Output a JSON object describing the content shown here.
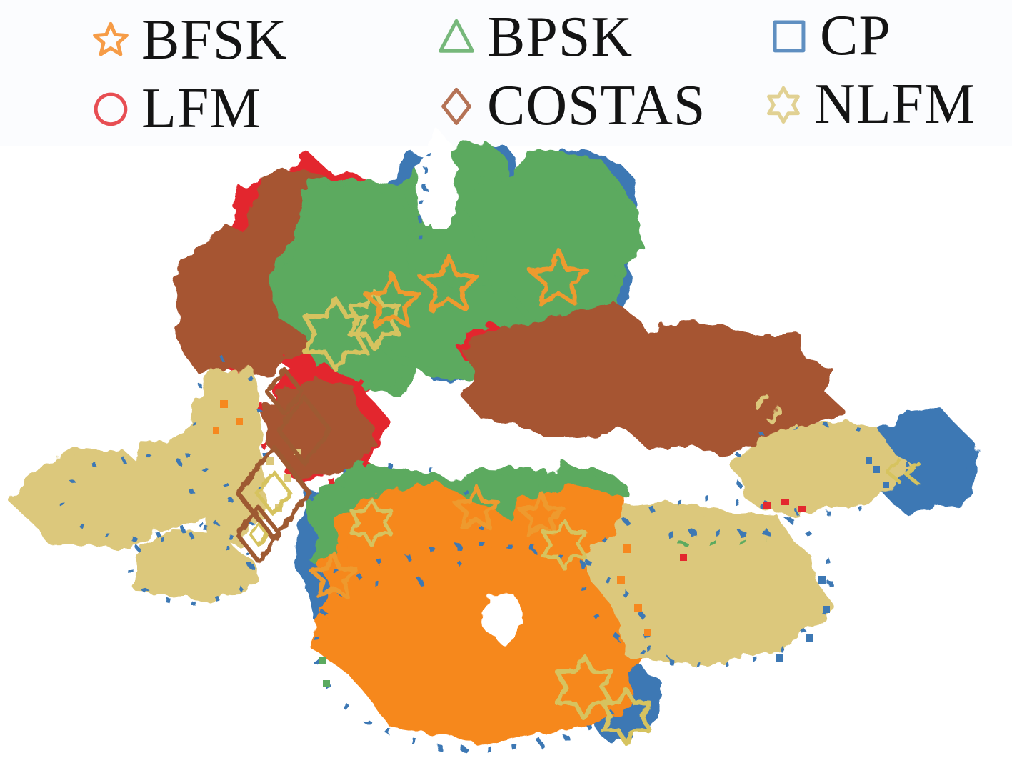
{
  "chart_data": {
    "type": "scatter",
    "title": "",
    "xlabel": "",
    "ylabel": "",
    "axes": "hidden (2-D feature-embedding cluster map)",
    "grid": "off",
    "legend_position": "top, 3 columns x 2 rows",
    "background": "#ffffff",
    "classes": [
      {
        "name": "BFSK",
        "marker": "star5",
        "color": "#F6881F",
        "outline_color": "#EE9A2F"
      },
      {
        "name": "BPSK",
        "marker": "triangle",
        "color": "#5BAA5F",
        "outline_color": "#5BAA5F"
      },
      {
        "name": "CP",
        "marker": "square",
        "color": "#3D78B4",
        "outline_color": "#6C8FAE"
      },
      {
        "name": "LFM",
        "marker": "circle",
        "color": "#E3282E",
        "outline_color": "#CC4A57"
      },
      {
        "name": "COSTAS",
        "marker": "diamond",
        "color": "#A65532",
        "outline_color": "#9E5A33"
      },
      {
        "name": "NLFM",
        "marker": "star6",
        "color": "#DCC87C",
        "outline_color": "#D6C35F"
      }
    ],
    "blobs": [
      [
        2,
        598,
        287,
        52,
        68,
        11
      ],
      [
        2,
        815,
        335,
        78,
        118,
        12
      ],
      [
        2,
        700,
        282,
        26,
        75,
        13
      ],
      [
        2,
        640,
        475,
        95,
        55,
        14
      ],
      [
        2,
        462,
        768,
        48,
        92,
        15
      ],
      [
        3,
        428,
        332,
        112,
        104,
        21
      ],
      [
        3,
        332,
        452,
        62,
        60,
        22
      ],
      [
        3,
        470,
        502,
        72,
        55,
        23
      ],
      [
        4,
        348,
        424,
        100,
        106,
        31
      ],
      [
        4,
        424,
        330,
        86,
        94,
        32
      ],
      [
        1,
        514,
        392,
        122,
        150,
        41
      ],
      [
        1,
        652,
        310,
        84,
        108,
        42
      ],
      [
        -1,
        612,
        258,
        23,
        63,
        45
      ],
      [
        1,
        772,
        345,
        108,
        140,
        43
      ],
      [
        1,
        640,
        462,
        105,
        65,
        44
      ],
      [
        3,
        692,
        486,
        42,
        26,
        52
      ],
      [
        4,
        808,
        522,
        145,
        92,
        51
      ],
      [
        4,
        1012,
        548,
        162,
        88,
        53
      ],
      [
        2,
        1292,
        648,
        68,
        70,
        61
      ],
      [
        5,
        1150,
        655,
        118,
        60,
        62
      ],
      [
        5,
        132,
        702,
        100,
        66,
        71
      ],
      [
        5,
        256,
        674,
        95,
        62,
        72
      ],
      [
        5,
        268,
        792,
        82,
        48,
        73
      ],
      [
        5,
        318,
        635,
        50,
        128,
        74
      ],
      [
        3,
        455,
        592,
        80,
        76,
        81
      ],
      [
        4,
        446,
        600,
        70,
        64,
        82
      ],
      [
        2,
        872,
        975,
        48,
        55,
        92
      ],
      [
        1,
        545,
        732,
        118,
        78,
        93
      ],
      [
        1,
        700,
        707,
        92,
        52,
        94
      ],
      [
        1,
        812,
        697,
        58,
        42,
        95
      ],
      [
        0,
        612,
        792,
        160,
        103,
        96
      ],
      [
        0,
        682,
        902,
        228,
        138,
        97
      ],
      [
        0,
        800,
        782,
        112,
        92,
        98
      ],
      [
        -1,
        703,
        864,
        25,
        30,
        99
      ],
      [
        5,
        992,
        812,
        168,
        112,
        101
      ]
    ],
    "dash_rings": [
      [
        2,
        205,
        698,
        118,
        58,
        "5 34",
        7
      ],
      [
        2,
        268,
        792,
        86,
        52,
        "5 30",
        7
      ],
      [
        2,
        318,
        635,
        54,
        132,
        "4 46",
        7
      ],
      [
        2,
        676,
        906,
        234,
        144,
        "6 30",
        8
      ],
      [
        2,
        992,
        814,
        172,
        116,
        "6 34",
        7
      ],
      [
        2,
        1150,
        657,
        122,
        62,
        "5 40",
        6
      ],
      [
        3,
        449,
        594,
        84,
        80,
        "9 46",
        7
      ],
      [
        2,
        548,
        734,
        124,
        84,
        "5 56",
        7
      ]
    ],
    "dash_paths": [
      [
        2,
        "M599,212 L585,332",
        "7 16",
        6
      ],
      [
        2,
        "M934,748 L1098,743",
        "9 24",
        7
      ],
      [
        1,
        "M952,762 L1075,757",
        "11 30",
        6
      ],
      [
        5,
        "M1056,570 L1074,552",
        "",
        5
      ],
      [
        5,
        "M1076,590 L1094,572",
        "",
        5
      ],
      [
        5,
        "M1096,610 L1114,592",
        "",
        5
      ]
    ],
    "specks": [
      [
        0,
        308,
        560,
        11,
        11
      ],
      [
        0,
        330,
        585,
        10,
        10
      ],
      [
        0,
        298,
        598,
        9,
        9
      ],
      [
        5,
        372,
        640,
        11,
        11
      ],
      [
        5,
        398,
        664,
        10,
        10
      ],
      [
        5,
        352,
        688,
        10,
        10
      ],
      [
        5,
        412,
        628,
        9,
        9
      ],
      [
        5,
        385,
        706,
        10,
        10
      ],
      [
        5,
        312,
        540,
        10,
        10
      ],
      [
        5,
        340,
        520,
        9,
        9
      ],
      [
        3,
        1068,
        702,
        12,
        10
      ],
      [
        3,
        1094,
        698,
        11,
        9
      ],
      [
        3,
        1118,
        708,
        10,
        9
      ],
      [
        3,
        952,
        776,
        10,
        9
      ],
      [
        0,
        872,
        762,
        12,
        12
      ],
      [
        0,
        864,
        806,
        11,
        11
      ],
      [
        0,
        888,
        846,
        11,
        11
      ],
      [
        0,
        902,
        880,
        10,
        10
      ],
      [
        2,
        1146,
        806,
        11,
        11
      ],
      [
        2,
        1152,
        848,
        10,
        10
      ],
      [
        2,
        1128,
        888,
        11,
        11
      ],
      [
        2,
        1086,
        916,
        10,
        10
      ],
      [
        2,
        1222,
        652,
        10,
        10
      ],
      [
        2,
        1236,
        674,
        9,
        9
      ],
      [
        2,
        1212,
        640,
        9,
        9
      ],
      [
        1,
        452,
        952,
        10,
        10
      ],
      [
        1,
        446,
        920,
        10,
        10
      ]
    ],
    "outline_markers": [
      [
        5,
        "star6",
        470,
        468,
        50,
        6
      ],
      [
        5,
        "star6",
        524,
        448,
        40,
        6
      ],
      [
        0,
        "star5",
        549,
        424,
        40,
        6
      ],
      [
        0,
        "star5",
        628,
        400,
        42,
        6
      ],
      [
        0,
        "star5",
        782,
        392,
        42,
        6
      ],
      [
        0,
        "star5",
        667,
        713,
        32,
        6
      ],
      [
        0,
        "star5",
        758,
        722,
        32,
        6
      ],
      [
        0,
        "star5",
        467,
        808,
        34,
        6
      ],
      [
        5,
        "star6",
        520,
        731,
        32,
        5
      ],
      [
        5,
        "star6",
        790,
        762,
        34,
        5
      ],
      [
        5,
        "star6",
        818,
        962,
        44,
        6
      ],
      [
        5,
        "star6",
        877,
        1003,
        38,
        6
      ],
      [
        4,
        "diamond",
        383,
        690,
        64,
        7
      ],
      [
        4,
        "diamond",
        426,
        602,
        46,
        6
      ],
      [
        4,
        "diamond",
        398,
        548,
        31,
        6
      ],
      [
        4,
        "diamond",
        362,
        748,
        38,
        6
      ],
      [
        5,
        "diamond",
        383,
        690,
        30,
        5
      ],
      [
        5,
        "diamond",
        362,
        748,
        15,
        4
      ],
      [
        5,
        "chevron",
        1250,
        660,
        16,
        5
      ],
      [
        5,
        "chevron",
        1276,
        663,
        16,
        5
      ]
    ]
  }
}
